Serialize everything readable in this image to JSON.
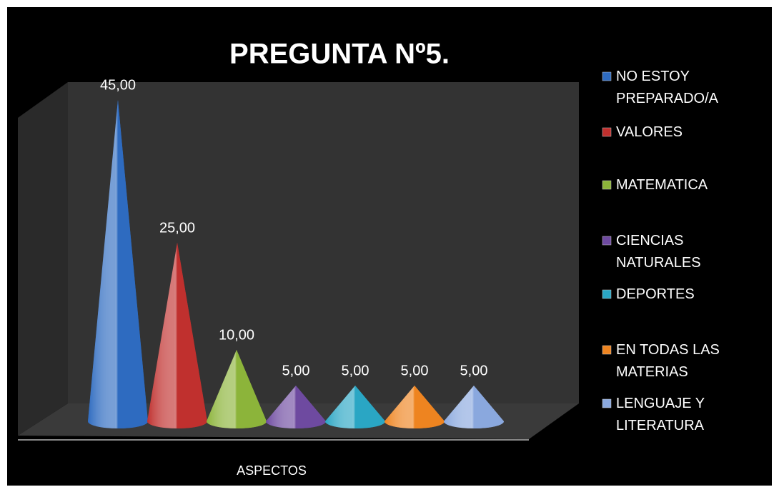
{
  "chart_data": {
    "type": "cone",
    "title": "PREGUNTA Nº5.",
    "categories": [
      "ASPECTOS"
    ],
    "legend": "right",
    "series": [
      {
        "name": "NO ESTOY PREPARADO/A",
        "color": "#2e6bc0",
        "values": [
          45
        ],
        "value_labels": [
          "45,00"
        ]
      },
      {
        "name": "VALORES",
        "color": "#c0302e",
        "values": [
          25
        ],
        "value_labels": [
          "25,00"
        ]
      },
      {
        "name": "MATEMATICA",
        "color": "#8cb43a",
        "values": [
          10
        ],
        "value_labels": [
          "10,00"
        ]
      },
      {
        "name": "CIENCIAS NATURALES",
        "color": "#6e4aa0",
        "values": [
          5
        ],
        "value_labels": [
          "5,00"
        ]
      },
      {
        "name": "DEPORTES",
        "color": "#2aa6c4",
        "values": [
          5
        ],
        "value_labels": [
          "5,00"
        ]
      },
      {
        "name": "EN TODAS LAS MATERIAS",
        "color": "#ee8420",
        "values": [
          5
        ],
        "value_labels": [
          "5,00"
        ]
      },
      {
        "name": "LENGUAJE Y LITERATURA",
        "color": "#8aa8de",
        "values": [
          5
        ],
        "value_labels": [
          "5,00"
        ]
      }
    ]
  }
}
